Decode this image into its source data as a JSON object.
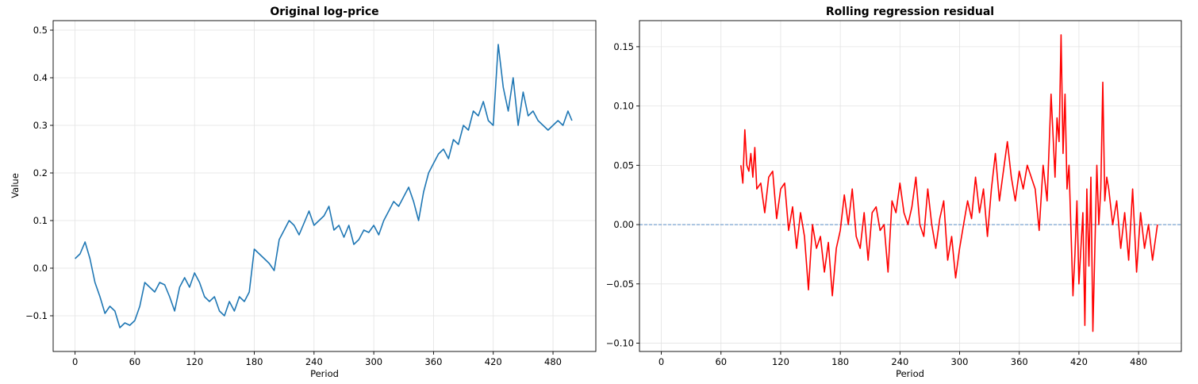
{
  "chart_data": [
    {
      "type": "line",
      "title": "Original log-price",
      "xlabel": "Period",
      "ylabel": "Value",
      "xlim": [
        -22,
        523
      ],
      "ylim": [
        -0.175,
        0.52
      ],
      "xticks": [
        0,
        60,
        120,
        180,
        240,
        300,
        360,
        420,
        480
      ],
      "yticks": [
        -0.1,
        0.0,
        0.1,
        0.2,
        0.3,
        0.4,
        0.5
      ],
      "ytick_labels": [
        "−0.1",
        "0.0",
        "0.1",
        "0.2",
        "0.3",
        "0.4",
        "0.5"
      ],
      "grid": true,
      "series": [
        {
          "color": "#1f77b4",
          "x": [
            0,
            5,
            10,
            15,
            20,
            25,
            30,
            35,
            40,
            45,
            50,
            55,
            60,
            65,
            70,
            75,
            80,
            85,
            90,
            95,
            100,
            105,
            110,
            115,
            120,
            125,
            130,
            135,
            140,
            145,
            150,
            155,
            160,
            165,
            170,
            175,
            180,
            185,
            190,
            195,
            200,
            205,
            210,
            215,
            220,
            225,
            230,
            235,
            240,
            245,
            250,
            255,
            260,
            265,
            270,
            275,
            280,
            285,
            290,
            295,
            300,
            305,
            310,
            315,
            320,
            325,
            330,
            335,
            340,
            345,
            350,
            355,
            360,
            365,
            370,
            375,
            380,
            385,
            390,
            395,
            400,
            405,
            410,
            415,
            420,
            425,
            430,
            435,
            440,
            445,
            450,
            455,
            460,
            465,
            470,
            475,
            480,
            485,
            490,
            495,
            499
          ],
          "y": [
            0.02,
            0.03,
            0.055,
            0.02,
            -0.03,
            -0.06,
            -0.095,
            -0.08,
            -0.09,
            -0.125,
            -0.115,
            -0.12,
            -0.11,
            -0.08,
            -0.03,
            -0.04,
            -0.05,
            -0.03,
            -0.035,
            -0.06,
            -0.09,
            -0.04,
            -0.02,
            -0.04,
            -0.01,
            -0.03,
            -0.06,
            -0.07,
            -0.06,
            -0.09,
            -0.1,
            -0.07,
            -0.09,
            -0.06,
            -0.07,
            -0.05,
            0.04,
            0.03,
            0.02,
            0.01,
            -0.005,
            0.06,
            0.08,
            0.1,
            0.09,
            0.07,
            0.095,
            0.12,
            0.09,
            0.1,
            0.11,
            0.13,
            0.08,
            0.09,
            0.065,
            0.09,
            0.05,
            0.06,
            0.08,
            0.075,
            0.09,
            0.07,
            0.1,
            0.12,
            0.14,
            0.13,
            0.15,
            0.17,
            0.14,
            0.1,
            0.16,
            0.2,
            0.22,
            0.24,
            0.25,
            0.23,
            0.27,
            0.26,
            0.3,
            0.29,
            0.33,
            0.32,
            0.35,
            0.31,
            0.3,
            0.47,
            0.38,
            0.33,
            0.4,
            0.3,
            0.37,
            0.32,
            0.33,
            0.31,
            0.3,
            0.29,
            0.3,
            0.31,
            0.3,
            0.33,
            0.31
          ]
        }
      ]
    },
    {
      "type": "line",
      "title": "Rolling regression residual",
      "xlabel": "Period",
      "ylabel": "",
      "xlim": [
        -22,
        523
      ],
      "ylim": [
        -0.107,
        0.172
      ],
      "xticks": [
        0,
        60,
        120,
        180,
        240,
        300,
        360,
        420,
        480
      ],
      "yticks": [
        -0.1,
        -0.05,
        0.0,
        0.05,
        0.1,
        0.15
      ],
      "ytick_labels": [
        "−0.10",
        "−0.05",
        "0.00",
        "0.05",
        "0.10",
        "0.15"
      ],
      "grid": true,
      "reference_line": {
        "y": 0.0,
        "style": "dashed",
        "color": "#5b8fc7"
      },
      "series": [
        {
          "color": "#ff0000",
          "x": [
            80,
            82,
            84,
            86,
            88,
            90,
            92,
            94,
            96,
            100,
            104,
            108,
            112,
            116,
            120,
            124,
            128,
            132,
            136,
            140,
            144,
            148,
            152,
            156,
            160,
            164,
            168,
            172,
            176,
            180,
            184,
            188,
            192,
            196,
            200,
            204,
            208,
            212,
            216,
            220,
            224,
            228,
            232,
            236,
            240,
            244,
            248,
            252,
            256,
            260,
            264,
            268,
            272,
            276,
            280,
            284,
            288,
            292,
            296,
            300,
            304,
            308,
            312,
            316,
            320,
            324,
            328,
            332,
            336,
            340,
            344,
            348,
            352,
            356,
            360,
            364,
            368,
            372,
            376,
            380,
            384,
            388,
            392,
            396,
            398,
            400,
            402,
            404,
            406,
            408,
            410,
            412,
            414,
            416,
            418,
            420,
            422,
            424,
            426,
            428,
            430,
            432,
            434,
            436,
            438,
            440,
            442,
            444,
            446,
            448,
            450,
            454,
            458,
            462,
            466,
            470,
            474,
            478,
            482,
            486,
            490,
            494,
            499
          ],
          "y": [
            0.05,
            0.035,
            0.08,
            0.05,
            0.045,
            0.06,
            0.04,
            0.065,
            0.03,
            0.035,
            0.01,
            0.04,
            0.045,
            0.005,
            0.03,
            0.035,
            -0.005,
            0.015,
            -0.02,
            0.01,
            -0.01,
            -0.055,
            0.0,
            -0.02,
            -0.01,
            -0.04,
            -0.015,
            -0.06,
            -0.02,
            -0.005,
            0.025,
            0.0,
            0.03,
            -0.01,
            -0.02,
            0.01,
            -0.03,
            0.01,
            0.015,
            -0.005,
            0.0,
            -0.04,
            0.02,
            0.01,
            0.035,
            0.01,
            0.0,
            0.015,
            0.04,
            0.0,
            -0.01,
            0.03,
            0.0,
            -0.02,
            0.005,
            0.02,
            -0.03,
            -0.01,
            -0.045,
            -0.02,
            0.0,
            0.02,
            0.005,
            0.04,
            0.01,
            0.03,
            -0.01,
            0.03,
            0.06,
            0.02,
            0.045,
            0.07,
            0.04,
            0.02,
            0.045,
            0.03,
            0.05,
            0.04,
            0.03,
            -0.005,
            0.05,
            0.02,
            0.11,
            0.04,
            0.09,
            0.07,
            0.16,
            0.06,
            0.11,
            0.03,
            0.05,
            -0.005,
            -0.06,
            -0.025,
            0.02,
            -0.05,
            -0.02,
            0.01,
            -0.085,
            0.03,
            -0.035,
            0.04,
            -0.09,
            -0.02,
            0.05,
            0.0,
            0.03,
            0.12,
            0.02,
            0.04,
            0.03,
            0.0,
            0.02,
            -0.02,
            0.01,
            -0.03,
            0.03,
            -0.04,
            0.01,
            -0.02,
            0.0,
            -0.03,
            0.0
          ]
        }
      ]
    }
  ]
}
